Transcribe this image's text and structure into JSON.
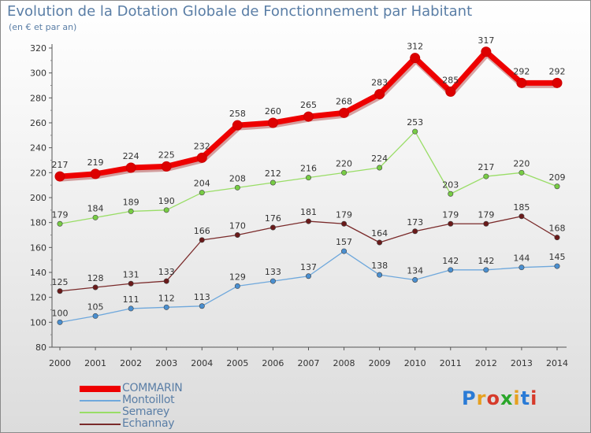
{
  "title": "Evolution de la Dotation Globale de Fonctionnement par Habitant",
  "subtitle": "(en € et par an)",
  "logo": {
    "text": "Proxiti",
    "letter_colors": [
      "#2a7bd6",
      "#e6a020",
      "#d63a2a",
      "#2aa62a",
      "#e6a020",
      "#2a7bd6",
      "#d63a2a"
    ]
  },
  "chart_data": {
    "type": "line",
    "categories": [
      "2000",
      "2001",
      "2002",
      "2003",
      "2004",
      "2005",
      "2006",
      "2007",
      "2008",
      "2009",
      "2010",
      "2011",
      "2012",
      "2013",
      "2014"
    ],
    "ylim": [
      80,
      320
    ],
    "yticks": [
      "80",
      "100",
      "120",
      "140",
      "160",
      "180",
      "200",
      "220",
      "240",
      "260",
      "280",
      "300",
      "320"
    ],
    "grid": false,
    "legend_position": "bottom-left",
    "series": [
      {
        "name": "COMMARIN",
        "color": "#ee0000",
        "marker": "#dd0000",
        "thick": true,
        "values": [
          217,
          219,
          224,
          225,
          232,
          258,
          260,
          265,
          268,
          283,
          312,
          285,
          317,
          292,
          292
        ]
      },
      {
        "name": "Montoillot",
        "color": "#6fa8dc",
        "marker": "#4a8fd0",
        "thick": false,
        "values": [
          100,
          105,
          111,
          112,
          113,
          129,
          133,
          137,
          157,
          138,
          134,
          142,
          142,
          144,
          145
        ]
      },
      {
        "name": "Semarey",
        "color": "#99dd66",
        "marker": "#77cc44",
        "thick": false,
        "values": [
          179,
          184,
          189,
          190,
          204,
          208,
          212,
          216,
          220,
          224,
          253,
          203,
          217,
          220,
          209
        ]
      },
      {
        "name": "Echannay",
        "color": "#7a2a2a",
        "marker": "#6a1a1a",
        "thick": false,
        "values": [
          125,
          128,
          131,
          133,
          166,
          170,
          176,
          181,
          179,
          164,
          173,
          179,
          179,
          185,
          168
        ]
      }
    ]
  }
}
